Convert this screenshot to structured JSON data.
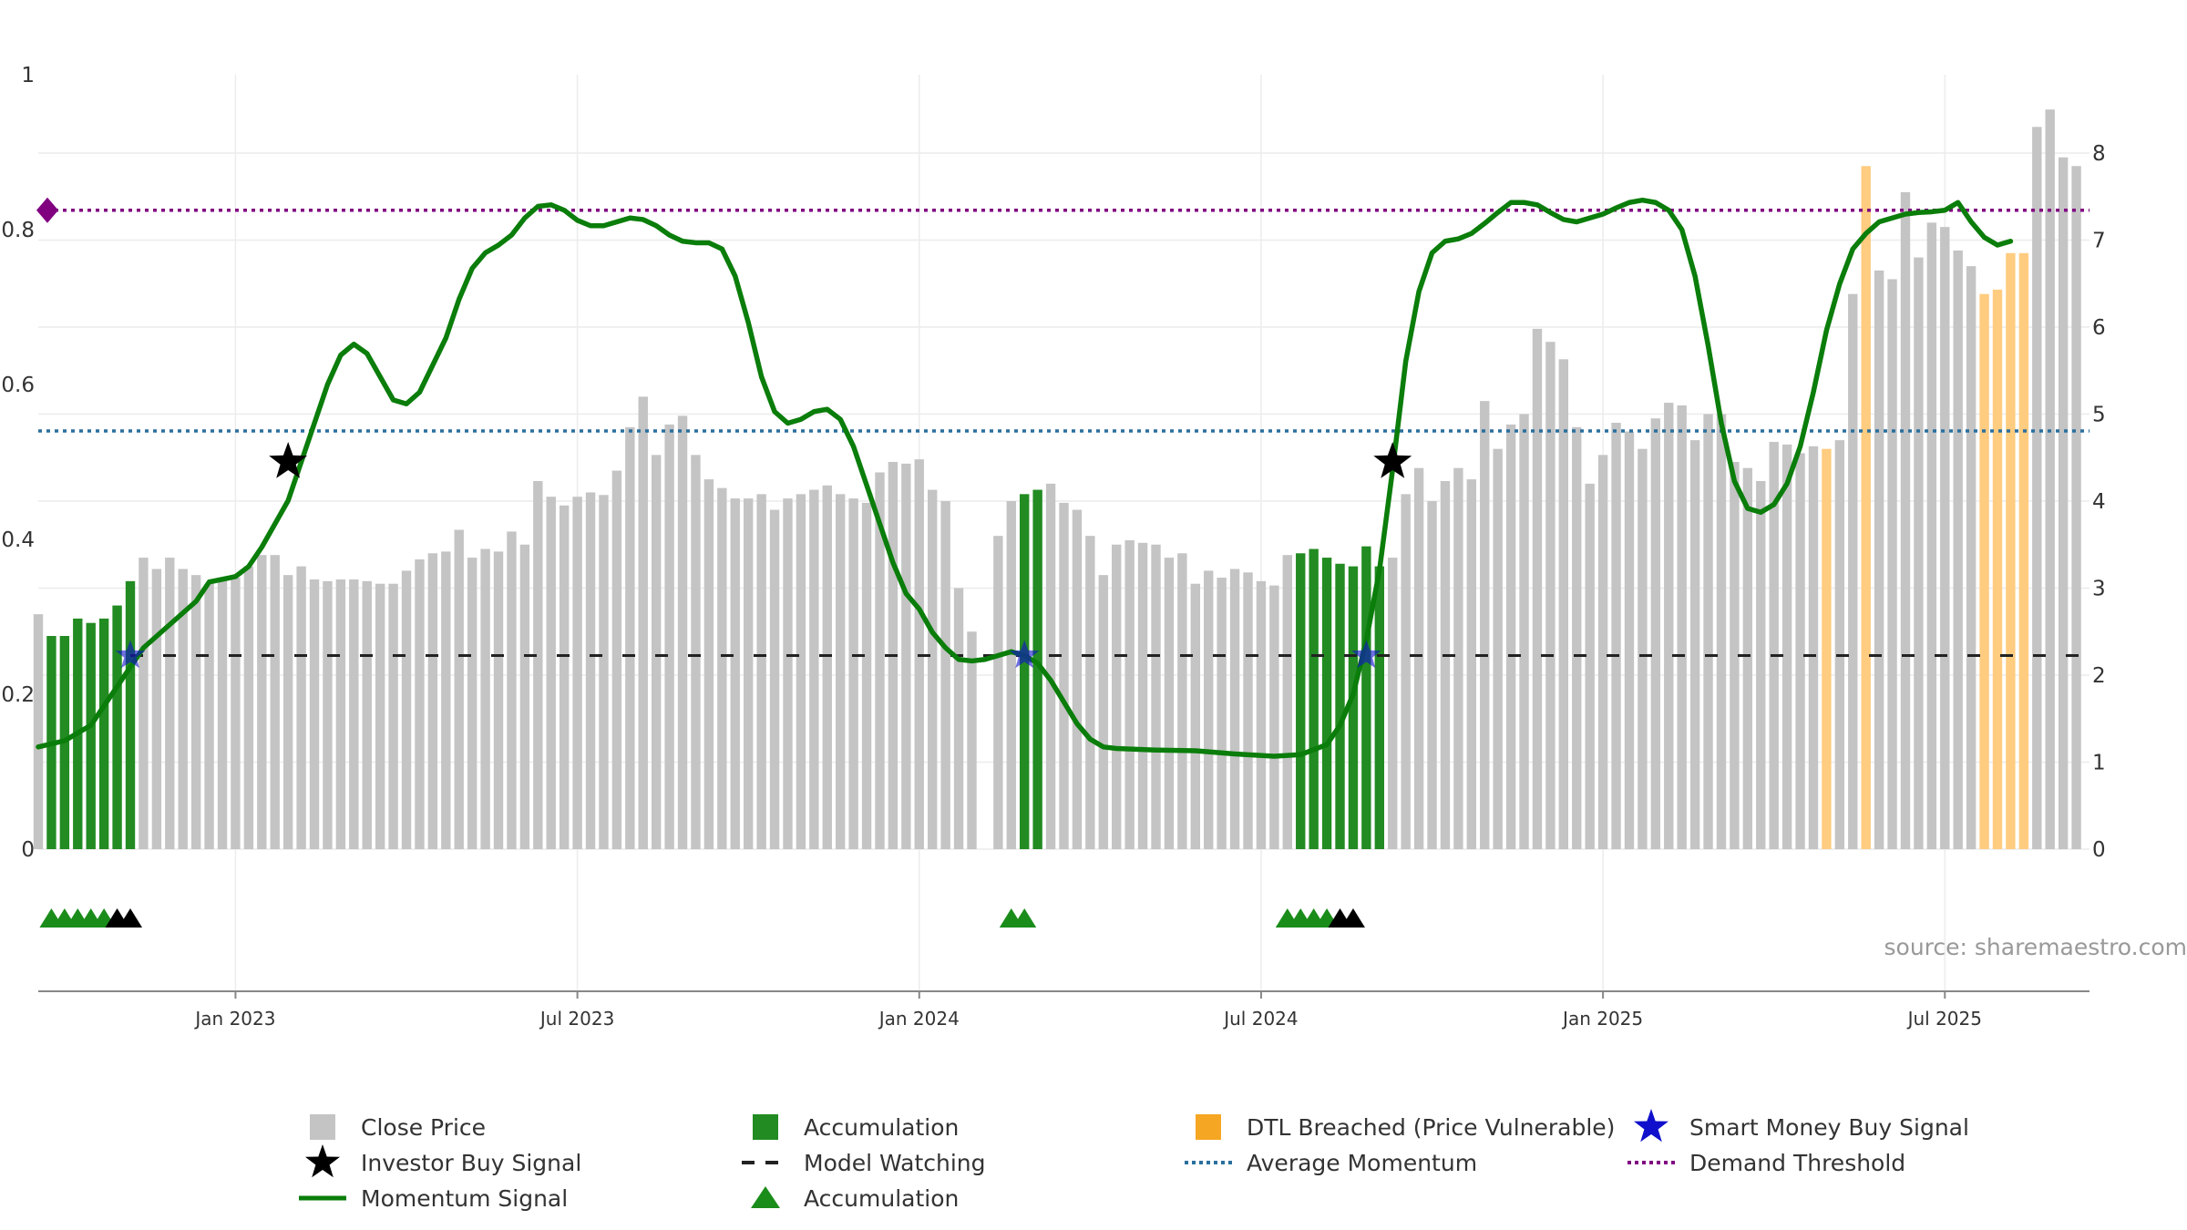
{
  "chart_data": {
    "type": "bar",
    "title": "",
    "source": "source: sharemaestro.com",
    "y_left": {
      "ticks": [
        "0",
        "0.2",
        "0.4",
        "0.6",
        "0.8",
        "1"
      ],
      "range": [
        0,
        1
      ]
    },
    "y_right": {
      "ticks": [
        "0",
        "1",
        "2",
        "3",
        "4",
        "5",
        "6",
        "7",
        "8"
      ],
      "range": [
        0,
        8.9
      ]
    },
    "x_ticks": [
      {
        "label": "Jan 2023",
        "week": 20
      },
      {
        "label": "Jul 2023",
        "week": 46
      },
      {
        "label": "Jan 2024",
        "week": 72
      },
      {
        "label": "Jul 2024",
        "week": 98
      },
      {
        "label": "Jan 2025",
        "week": 124
      },
      {
        "label": "Jul 2025",
        "week": 150
      }
    ],
    "week_range": [
      5,
      161
    ],
    "close_price": [
      2.7,
      2.45,
      2.45,
      2.65,
      2.6,
      2.65,
      2.8,
      3.08,
      3.35,
      3.22,
      3.35,
      3.22,
      3.15,
      3.05,
      3.1,
      3.12,
      3.25,
      3.38,
      3.38,
      3.15,
      3.25,
      3.1,
      3.08,
      3.1,
      3.1,
      3.08,
      3.05,
      3.05,
      3.2,
      3.33,
      3.4,
      3.42,
      3.67,
      3.35,
      3.45,
      3.42,
      3.65,
      3.5,
      4.23,
      4.05,
      3.95,
      4.05,
      4.1,
      4.07,
      4.35,
      4.85,
      5.2,
      4.53,
      4.88,
      4.98,
      4.53,
      4.25,
      4.15,
      4.03,
      4.03,
      4.08,
      3.9,
      4.03,
      4.08,
      4.13,
      4.18,
      4.08,
      4.03,
      3.98,
      4.33,
      4.45,
      4.43,
      4.48,
      4.13,
      4.0,
      3.0,
      2.5,
      null,
      3.6,
      4.0,
      4.08,
      4.13,
      4.2,
      3.98,
      3.9,
      3.6,
      3.15,
      3.5,
      3.55,
      3.52,
      3.5,
      3.35,
      3.4,
      3.05,
      3.2,
      3.12,
      3.22,
      3.18,
      3.08,
      3.03,
      3.38,
      3.4,
      3.45,
      3.35,
      3.28,
      3.25,
      3.48,
      3.25,
      3.35,
      4.08,
      4.38,
      4.0,
      4.23,
      4.38,
      4.25,
      5.15,
      4.6,
      4.88,
      5.0,
      5.98,
      5.83,
      5.63,
      4.85,
      4.2,
      4.53,
      4.9,
      4.8,
      4.6,
      4.95,
      5.13,
      5.1,
      4.7,
      5.0,
      5.0,
      4.45,
      4.38,
      4.23,
      4.68,
      4.65,
      4.55,
      4.63,
      4.6,
      4.7,
      6.38,
      7.85,
      6.65,
      6.55,
      7.55,
      6.8,
      7.2,
      7.15,
      6.88,
      6.7,
      6.38,
      6.43,
      6.85,
      6.85,
      8.3,
      8.5,
      7.95,
      7.85
    ],
    "accumulation_weeks": [
      6,
      7,
      8,
      9,
      10,
      11,
      12,
      80,
      81,
      101,
      102,
      103,
      104,
      105,
      106,
      107
    ],
    "dtl_breached_weeks": [
      141,
      144,
      153,
      154,
      155,
      156
    ],
    "momentum_signal": [
      [
        5,
        0.132
      ],
      [
        7,
        0.14
      ],
      [
        9,
        0.16
      ],
      [
        11,
        0.21
      ],
      [
        13,
        0.26
      ],
      [
        15,
        0.29
      ],
      [
        17,
        0.32
      ],
      [
        18,
        0.345
      ],
      [
        20,
        0.352
      ],
      [
        21,
        0.365
      ],
      [
        22,
        0.39
      ],
      [
        24,
        0.45
      ],
      [
        25,
        0.5
      ],
      [
        26,
        0.55
      ],
      [
        27,
        0.6
      ],
      [
        28,
        0.638
      ],
      [
        29,
        0.652
      ],
      [
        30,
        0.64
      ],
      [
        31,
        0.61
      ],
      [
        32,
        0.58
      ],
      [
        33,
        0.575
      ],
      [
        34,
        0.59
      ],
      [
        36,
        0.66
      ],
      [
        37,
        0.71
      ],
      [
        38,
        0.75
      ],
      [
        39,
        0.77
      ],
      [
        40,
        0.78
      ],
      [
        41,
        0.793
      ],
      [
        42,
        0.815
      ],
      [
        43,
        0.83
      ],
      [
        44,
        0.832
      ],
      [
        45,
        0.825
      ],
      [
        46,
        0.812
      ],
      [
        47,
        0.805
      ],
      [
        48,
        0.805
      ],
      [
        49,
        0.81
      ],
      [
        50,
        0.815
      ],
      [
        51,
        0.813
      ],
      [
        52,
        0.805
      ],
      [
        53,
        0.793
      ],
      [
        54,
        0.785
      ],
      [
        55,
        0.783
      ],
      [
        56,
        0.783
      ],
      [
        57,
        0.775
      ],
      [
        58,
        0.74
      ],
      [
        59,
        0.68
      ],
      [
        60,
        0.61
      ],
      [
        61,
        0.565
      ],
      [
        62,
        0.55
      ],
      [
        63,
        0.555
      ],
      [
        64,
        0.565
      ],
      [
        65,
        0.568
      ],
      [
        66,
        0.555
      ],
      [
        67,
        0.52
      ],
      [
        68,
        0.47
      ],
      [
        69,
        0.42
      ],
      [
        70,
        0.37
      ],
      [
        71,
        0.33
      ],
      [
        72,
        0.31
      ],
      [
        73,
        0.28
      ],
      [
        74,
        0.26
      ],
      [
        75,
        0.245
      ],
      [
        76,
        0.243
      ],
      [
        77,
        0.245
      ],
      [
        78,
        0.25
      ],
      [
        79,
        0.255
      ],
      [
        80,
        0.25
      ],
      [
        81,
        0.24
      ],
      [
        82,
        0.218
      ],
      [
        83,
        0.19
      ],
      [
        84,
        0.162
      ],
      [
        85,
        0.142
      ],
      [
        86,
        0.132
      ],
      [
        87,
        0.13
      ],
      [
        90,
        0.128
      ],
      [
        93,
        0.127
      ],
      [
        96,
        0.123
      ],
      [
        99,
        0.12
      ],
      [
        101,
        0.122
      ],
      [
        103,
        0.135
      ],
      [
        104,
        0.16
      ],
      [
        105,
        0.2
      ],
      [
        106,
        0.27
      ],
      [
        107,
        0.36
      ],
      [
        108,
        0.49
      ],
      [
        109,
        0.63
      ],
      [
        110,
        0.72
      ],
      [
        111,
        0.77
      ],
      [
        112,
        0.785
      ],
      [
        113,
        0.788
      ],
      [
        114,
        0.795
      ],
      [
        115,
        0.808
      ],
      [
        116,
        0.822
      ],
      [
        117,
        0.835
      ],
      [
        118,
        0.835
      ],
      [
        119,
        0.832
      ],
      [
        120,
        0.822
      ],
      [
        121,
        0.813
      ],
      [
        122,
        0.81
      ],
      [
        123,
        0.815
      ],
      [
        124,
        0.82
      ],
      [
        125,
        0.828
      ],
      [
        126,
        0.835
      ],
      [
        127,
        0.838
      ],
      [
        128,
        0.835
      ],
      [
        129,
        0.825
      ],
      [
        130,
        0.8
      ],
      [
        131,
        0.74
      ],
      [
        132,
        0.65
      ],
      [
        133,
        0.55
      ],
      [
        134,
        0.475
      ],
      [
        135,
        0.44
      ],
      [
        136,
        0.435
      ],
      [
        137,
        0.445
      ],
      [
        138,
        0.472
      ],
      [
        139,
        0.52
      ],
      [
        140,
        0.59
      ],
      [
        141,
        0.67
      ],
      [
        142,
        0.73
      ],
      [
        143,
        0.775
      ],
      [
        144,
        0.795
      ],
      [
        145,
        0.81
      ],
      [
        146,
        0.815
      ],
      [
        147,
        0.82
      ],
      [
        148,
        0.822
      ],
      [
        149,
        0.823
      ],
      [
        150,
        0.825
      ],
      [
        151,
        0.835
      ],
      [
        152,
        0.81
      ],
      [
        153,
        0.79
      ],
      [
        154,
        0.78
      ],
      [
        155,
        0.785
      ]
    ],
    "average_momentum": 0.54,
    "demand_threshold": 0.825,
    "model_watching": 0.25,
    "investor_buy_signals": [
      [
        24,
        0.5
      ],
      [
        108,
        0.5
      ]
    ],
    "smart_money_buy_signals": [
      [
        12,
        0.25
      ],
      [
        80,
        0.25
      ],
      [
        106,
        0.25
      ]
    ],
    "accumulation_markers_green": [
      6,
      7,
      8,
      9,
      10,
      79,
      80,
      100,
      101,
      102,
      103
    ],
    "accumulation_markers_black": [
      11,
      12,
      104,
      105
    ],
    "colors": {
      "close": "#c4c4c4",
      "accumulation": "#228b22",
      "dtl": "#ffcc80",
      "momentum": "#0a7d0a",
      "average": "#2a6f9e",
      "threshold": "#800080",
      "watching": "#222222",
      "star_black": "#000000",
      "star_blue": "#1010cc",
      "tri_green": "#1a8c1a",
      "tri_black": "#000000"
    },
    "legend": [
      {
        "label": "Close Price",
        "kind": "square",
        "color": "#c4c4c4"
      },
      {
        "label": "Accumulation",
        "kind": "square",
        "color": "#228b22"
      },
      {
        "label": "DTL Breached (Price Vulnerable)",
        "kind": "square",
        "color": "#f5a623"
      },
      {
        "label": "Smart Money Buy Signal",
        "kind": "star",
        "color": "#1010cc"
      },
      {
        "label": "Investor Buy Signal",
        "kind": "star",
        "color": "#000000"
      },
      {
        "label": "Model Watching",
        "kind": "dash",
        "color": "#222222"
      },
      {
        "label": "Average Momentum",
        "kind": "dot",
        "color": "#2a6f9e"
      },
      {
        "label": "Demand Threshold",
        "kind": "dot",
        "color": "#800080"
      },
      {
        "label": "Momentum Signal",
        "kind": "line",
        "color": "#0a7d0a"
      },
      {
        "label": "Accumulation",
        "kind": "triangle",
        "color": "#1a8c1a"
      }
    ]
  }
}
